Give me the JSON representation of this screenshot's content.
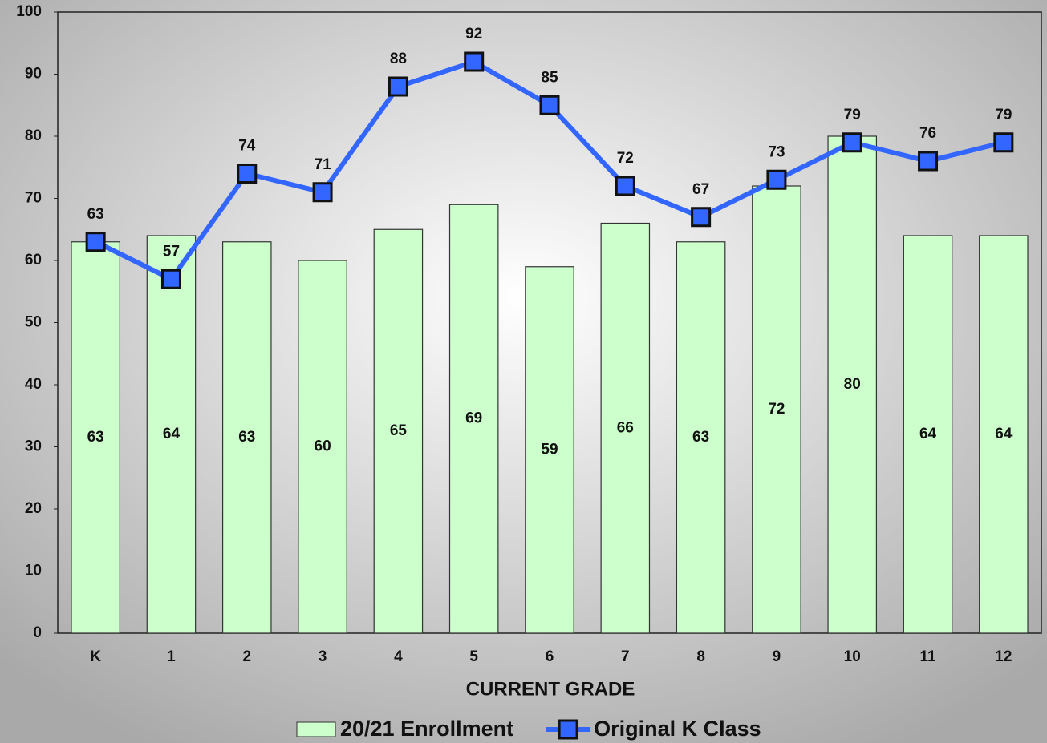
{
  "chart_data": {
    "type": "bar",
    "xlabel": "CURRENT GRADE",
    "categories": [
      "K",
      "1",
      "2",
      "3",
      "4",
      "5",
      "6",
      "7",
      "8",
      "9",
      "10",
      "11",
      "12"
    ],
    "series": [
      {
        "name": "20/21 Enrollment",
        "type": "bar",
        "color": "#ccffcc",
        "values": [
          63,
          64,
          63,
          60,
          65,
          69,
          59,
          66,
          63,
          72,
          80,
          64,
          64
        ]
      },
      {
        "name": "Original K Class",
        "type": "line",
        "color": "#3366ff",
        "values": [
          63,
          57,
          74,
          71,
          88,
          92,
          85,
          72,
          67,
          73,
          79,
          76,
          79
        ]
      }
    ],
    "ylim": [
      0,
      100
    ],
    "yticks": [
      0,
      10,
      20,
      30,
      40,
      50,
      60,
      70,
      80,
      90,
      100
    ],
    "grid": false,
    "legend": "bottom"
  }
}
